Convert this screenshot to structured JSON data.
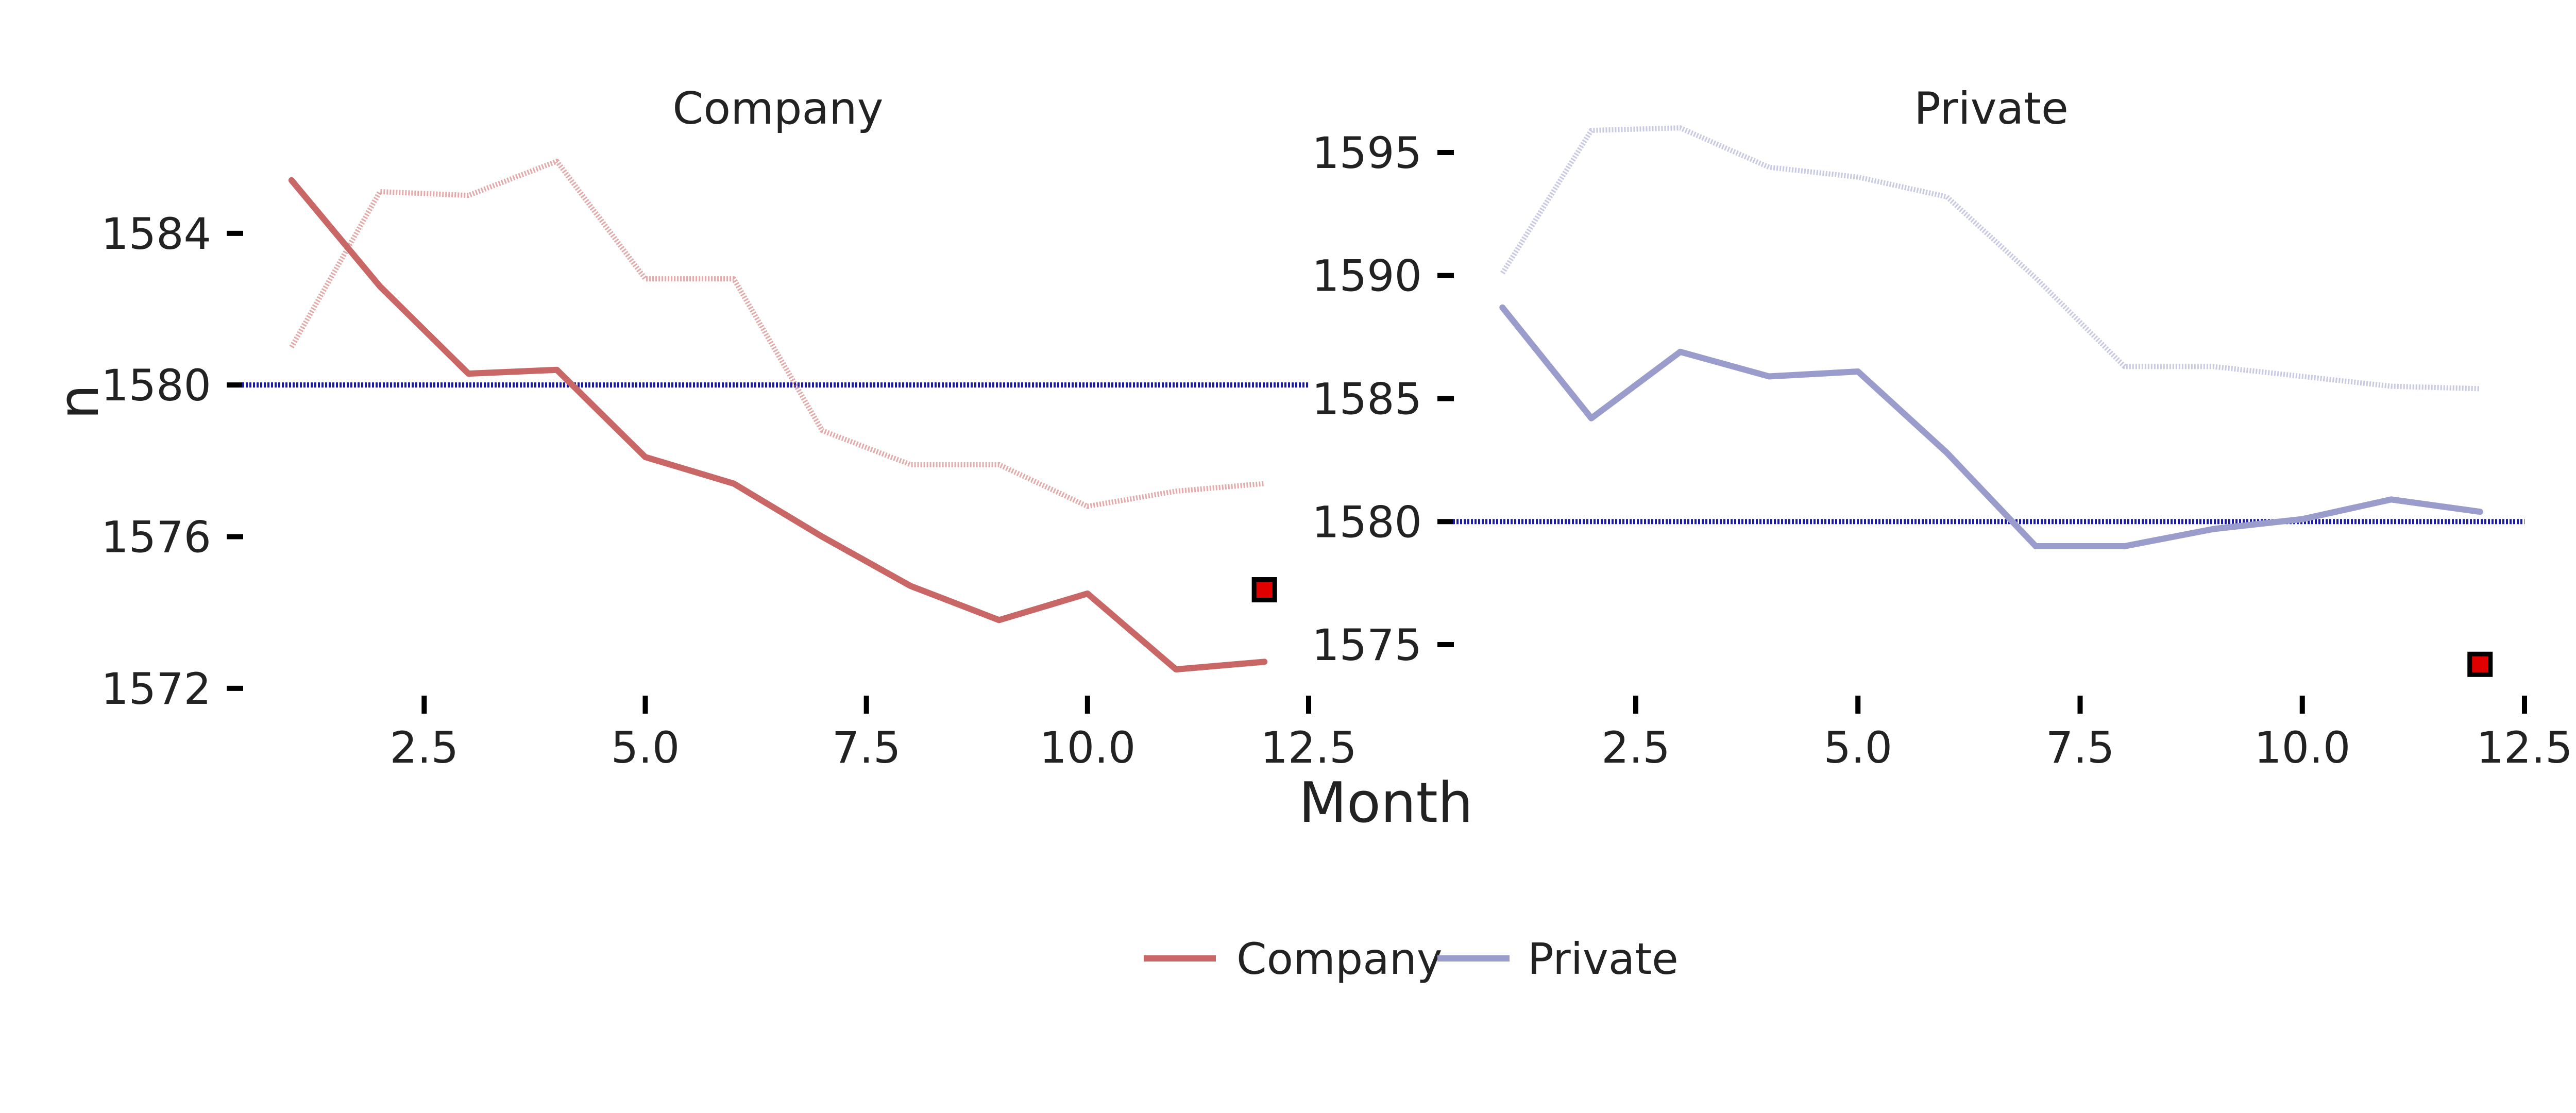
{
  "chart_data": {
    "type": "line",
    "xlabel": "Month",
    "ylabel": "n",
    "colors": {
      "Company": "#c96666",
      "Private": "#9a9ccc",
      "reference_line": "#1a1aa6",
      "marker_fill": "#e00000",
      "marker_stroke": "#000000"
    },
    "legend": {
      "position": "bottom",
      "entries": [
        "Company",
        "Private"
      ]
    },
    "panels": [
      {
        "title": "Company",
        "xlim": [
          0.5,
          12.5
        ],
        "ylim": [
          1571.4,
          1587.3
        ],
        "x_ticks": [
          "2.5",
          "5.0",
          "7.5",
          "10.0",
          "12.5"
        ],
        "y_ticks": [
          "1572",
          "1576",
          "1580",
          "1584"
        ],
        "reference_y": 1580,
        "series": [
          {
            "name": "Company",
            "style": "solid",
            "x": [
              1,
              2,
              3,
              4,
              5,
              6,
              7,
              8,
              9,
              10,
              11,
              12
            ],
            "y": [
              1585.4,
              1582.6,
              1580.3,
              1580.4,
              1578.1,
              1577.4,
              1576.0,
              1574.7,
              1573.8,
              1574.5,
              1572.5,
              1572.7
            ]
          },
          {
            "style": "dotted",
            "x": [
              1,
              2,
              3,
              4,
              5,
              6,
              7,
              8,
              9,
              10,
              11,
              12
            ],
            "y": [
              1581.0,
              1585.1,
              1585.0,
              1585.9,
              1582.8,
              1582.8,
              1578.8,
              1577.9,
              1577.9,
              1576.8,
              1577.2,
              1577.4
            ]
          }
        ],
        "marker": {
          "x": 12,
          "y": 1574.6
        }
      },
      {
        "title": "Private",
        "xlim": [
          0.5,
          12.5
        ],
        "ylim": [
          1572.3,
          1596.8
        ],
        "x_ticks": [
          "2.5",
          "5.0",
          "7.5",
          "10.0",
          "12.5"
        ],
        "y_ticks": [
          "1575",
          "1580",
          "1585",
          "1590",
          "1595"
        ],
        "reference_y": 1580,
        "series": [
          {
            "name": "Private",
            "style": "solid",
            "x": [
              1,
              2,
              3,
              4,
              5,
              6,
              7,
              8,
              9,
              10,
              11,
              12
            ],
            "y": [
              1588.7,
              1584.2,
              1586.9,
              1585.9,
              1586.1,
              1582.8,
              1579.0,
              1579.0,
              1579.7,
              1580.1,
              1580.9,
              1580.4
            ]
          },
          {
            "style": "dotted",
            "x": [
              1,
              2,
              3,
              4,
              5,
              6,
              7,
              8,
              9,
              10,
              11,
              12
            ],
            "y": [
              1590.1,
              1595.9,
              1596.0,
              1594.4,
              1594.0,
              1593.2,
              1589.9,
              1586.3,
              1586.3,
              1585.9,
              1585.5,
              1585.4
            ]
          }
        ],
        "marker": {
          "x": 12,
          "y": 1574.2
        }
      }
    ]
  }
}
